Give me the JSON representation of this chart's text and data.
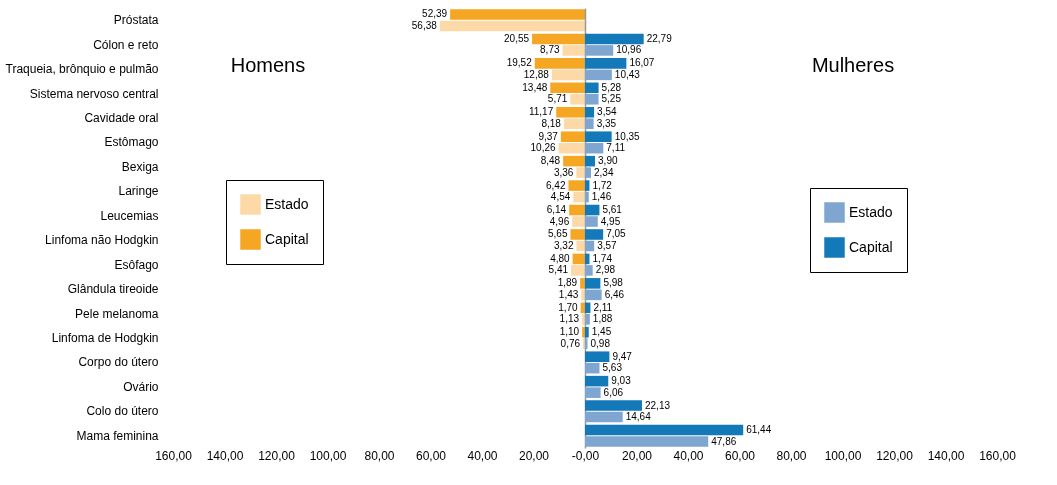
{
  "chart_data": [
    {
      "type": "bar",
      "orientation": "horizontal",
      "categories": [
        "Próstata",
        "Cólon e reto",
        "Traqueia, brônquio e pulmão",
        "Sistema nervoso central",
        "Cavidade oral",
        "Estômago",
        "Bexiga",
        "Laringe",
        "Leucemias",
        "Linfoma não Hodgkin",
        "Esôfago",
        "Glândula tireoide",
        "Pele melanoma",
        "Linfoma de Hodgkin",
        "Corpo do útero",
        "Ovário",
        "Colo do útero",
        "Mama feminina"
      ],
      "series": [
        {
          "name": "Estado",
          "color": "#fdd9a8",
          "values": [
            56.38,
            8.73,
            12.88,
            5.71,
            8.18,
            10.26,
            3.36,
            4.54,
            4.96,
            3.32,
            5.41,
            1.43,
            1.13,
            0.76,
            null,
            null,
            null,
            null
          ],
          "value_labels": [
            "56,38",
            "8,73",
            "12,88",
            "5,71",
            "8,18",
            "10,26",
            "3,36",
            "4,54",
            "4,96",
            "3,32",
            "5,41",
            "1,43",
            "1,13",
            "0,76",
            null,
            null,
            null,
            null
          ]
        },
        {
          "name": "Capital",
          "color": "#f5a623",
          "values": [
            52.39,
            20.55,
            19.52,
            13.48,
            11.17,
            9.37,
            8.48,
            6.42,
            6.14,
            5.65,
            4.8,
            1.89,
            1.7,
            1.1,
            null,
            null,
            null,
            null
          ],
          "value_labels": [
            "52,39",
            "20,55",
            "19,52",
            "13,48",
            "11,17",
            "9,37",
            "8,48",
            "6,42",
            "6,14",
            "5,65",
            "4,80",
            "1,89",
            "1,70",
            "1,10",
            null,
            null,
            null,
            null
          ]
        }
      ],
      "xlim": [
        160,
        0
      ],
      "xticks": [
        {
          "value": 160,
          "label": "160,00"
        },
        {
          "value": 140,
          "label": "140,00"
        },
        {
          "value": 120,
          "label": "120,00"
        },
        {
          "value": 100,
          "label": "100,00"
        },
        {
          "value": 80,
          "label": "80,00"
        },
        {
          "value": 60,
          "label": "60,00"
        },
        {
          "value": 40,
          "label": "40,00"
        },
        {
          "value": 20,
          "label": "20,00"
        },
        {
          "value": 0,
          "label": "-0,00"
        }
      ],
      "annotations": [
        "Homens"
      ],
      "legend": "left",
      "grid": false
    },
    {
      "type": "bar",
      "orientation": "horizontal",
      "categories": [
        "Próstata",
        "Cólon e reto",
        "Traqueia, brônquio e pulmão",
        "Sistema nervoso central",
        "Cavidade oral",
        "Estômago",
        "Bexiga",
        "Laringe",
        "Leucemias",
        "Linfoma não Hodgkin",
        "Esôfago",
        "Glândula tireoide",
        "Pele melanoma",
        "Linfoma de Hodgkin",
        "Corpo do útero",
        "Ovário",
        "Colo do útero",
        "Mama feminina"
      ],
      "series": [
        {
          "name": "Estado",
          "color": "#7fa6d0",
          "values": [
            null,
            10.96,
            10.43,
            5.25,
            3.35,
            7.11,
            2.34,
            1.46,
            4.95,
            3.57,
            2.98,
            6.46,
            1.88,
            0.98,
            5.63,
            6.06,
            14.64,
            47.86
          ],
          "value_labels": [
            null,
            "10,96",
            "10,43",
            "5,25",
            "3,35",
            "7,11",
            "2,34",
            "1,46",
            "4,95",
            "3,57",
            "2,98",
            "6,46",
            "1,88",
            "0,98",
            "5,63",
            "6,06",
            "14,64",
            "47,86"
          ]
        },
        {
          "name": "Capital",
          "color": "#1479b8",
          "values": [
            null,
            22.79,
            16.07,
            5.28,
            3.54,
            10.35,
            3.9,
            1.72,
            5.61,
            7.05,
            1.74,
            5.98,
            2.11,
            1.45,
            9.47,
            9.03,
            22.13,
            61.44
          ],
          "value_labels": [
            null,
            "22,79",
            "16,07",
            "5,28",
            "3,54",
            "10,35",
            "3,90",
            "1,72",
            "5,61",
            "7,05",
            "1,74",
            "5,98",
            "2,11",
            "1,45",
            "9,47",
            "9,03",
            "22,13",
            "61,44"
          ]
        }
      ],
      "xlim": [
        0,
        160
      ],
      "xticks": [
        {
          "value": 0,
          "label": null
        },
        {
          "value": 20,
          "label": "20,00"
        },
        {
          "value": 40,
          "label": "40,00"
        },
        {
          "value": 60,
          "label": "60,00"
        },
        {
          "value": 80,
          "label": "80,00"
        },
        {
          "value": 100,
          "label": "100,00"
        },
        {
          "value": 120,
          "label": "120,00"
        },
        {
          "value": 140,
          "label": "140,00"
        },
        {
          "value": 160,
          "label": "160,00"
        }
      ],
      "annotations": [
        "Mulheres"
      ],
      "legend": "right",
      "tick_labels": "x",
      "grid": false
    }
  ]
}
